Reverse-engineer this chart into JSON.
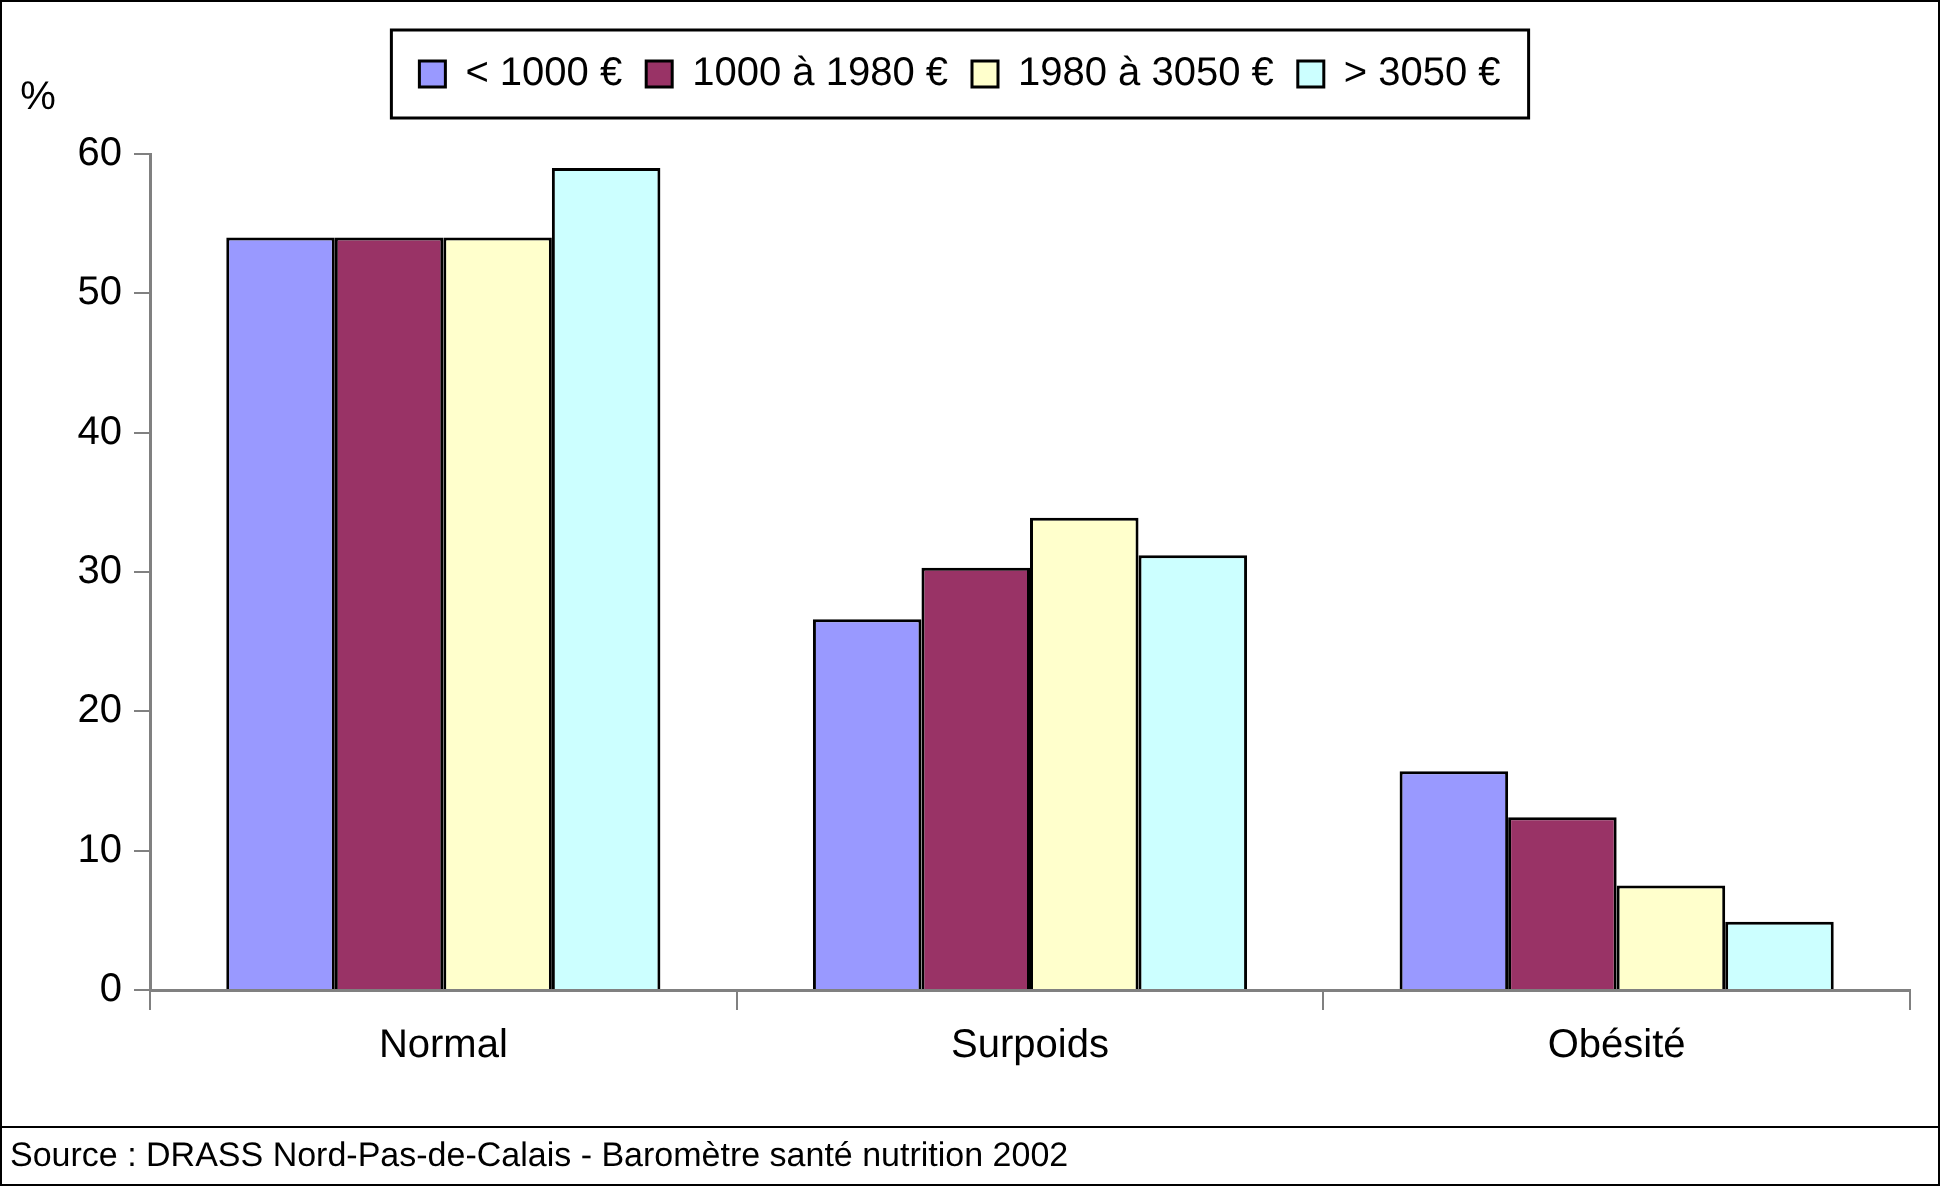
{
  "chart_data": {
    "type": "bar",
    "ylabel": "%",
    "categories": [
      "Normal",
      "Surpoids",
      "Obésité"
    ],
    "series": [
      {
        "name": "< 1000 €",
        "color": "#9999ff",
        "values": [
          54,
          26.6,
          15.7
        ]
      },
      {
        "name": "1000 à 1980 €",
        "color": "#993366",
        "values": [
          54,
          30.3,
          12.4
        ]
      },
      {
        "name": "1980 à 3050 €",
        "color": "#ffffcc",
        "values": [
          54,
          33.9,
          7.5
        ]
      },
      {
        "name": "> 3050 €",
        "color": "#ccffff",
        "values": [
          59,
          31.2,
          4.9
        ]
      }
    ],
    "ylim": [
      0,
      60
    ],
    "yticks": [
      0,
      10,
      20,
      30,
      40,
      50,
      60
    ],
    "grid": false,
    "legend": "top",
    "annotations": [
      "Source : DRASS Nord-Pas-de-Calais - Baromètre santé nutrition 2002"
    ]
  }
}
